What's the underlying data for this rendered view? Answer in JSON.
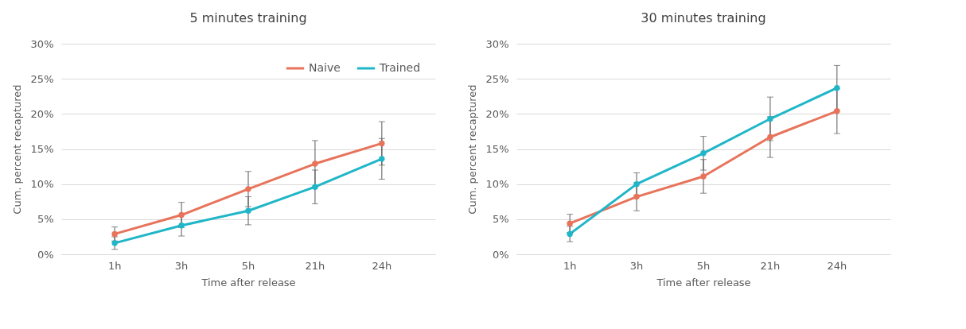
{
  "chart_data": [
    {
      "type": "line",
      "title": "5 minutes training",
      "xlabel": "Time after release",
      "ylabel": "Cum. percent recaptured",
      "categories": [
        "1h",
        "3h",
        "5h",
        "21h",
        "24h"
      ],
      "series": [
        {
          "name": "Naive",
          "color": "#e8735b",
          "values": [
            2.9,
            5.6,
            9.3,
            12.9,
            15.8
          ],
          "errors": [
            1.0,
            1.8,
            2.5,
            3.3,
            3.1
          ]
        },
        {
          "name": "Trained",
          "color": "#1fb6c8",
          "values": [
            1.6,
            4.1,
            6.2,
            9.6,
            13.6
          ],
          "errors": [
            0.9,
            1.5,
            2.0,
            2.4,
            2.9
          ]
        }
      ],
      "ylim": [
        0,
        30
      ],
      "yticks": [
        {
          "value": 0,
          "label": "0%"
        },
        {
          "value": 5,
          "label": "5%"
        },
        {
          "value": 10,
          "label": "10%"
        },
        {
          "value": 15,
          "label": "15%"
        },
        {
          "value": 20,
          "label": "20%"
        },
        {
          "value": 25,
          "label": "25%"
        },
        {
          "value": 30,
          "label": "30%"
        }
      ],
      "grid": "y",
      "legend": "top right",
      "marker": "circle",
      "line_style": "solid"
    },
    {
      "type": "line",
      "title": "30 minutes training",
      "xlabel": "Time after release",
      "ylabel": "Cum. percent  recaptured",
      "categories": [
        "1h",
        "3h",
        "5h",
        "21h",
        "24h"
      ],
      "series": [
        {
          "color": "#e8735b",
          "values": [
            4.4,
            8.2,
            11.1,
            16.7,
            20.4
          ],
          "errors": [
            1.3,
            2.0,
            2.4,
            2.9,
            3.2
          ]
        },
        {
          "color": "#1fb6c8",
          "values": [
            2.9,
            10.0,
            14.4,
            19.3,
            23.7
          ],
          "errors": [
            1.1,
            1.6,
            2.4,
            3.1,
            3.2
          ]
        }
      ],
      "ylim": [
        0,
        30
      ],
      "yticks": [
        {
          "value": 0,
          "label": "0%"
        },
        {
          "value": 5,
          "label": "5%"
        },
        {
          "value": 10,
          "label": "10%"
        },
        {
          "value": 15,
          "label": "15%"
        },
        {
          "value": 20,
          "label": "20%"
        },
        {
          "value": 25,
          "label": "25%"
        },
        {
          "value": 30,
          "label": "30%"
        }
      ],
      "grid": "y",
      "marker": "circle",
      "line_style": "solid"
    }
  ]
}
